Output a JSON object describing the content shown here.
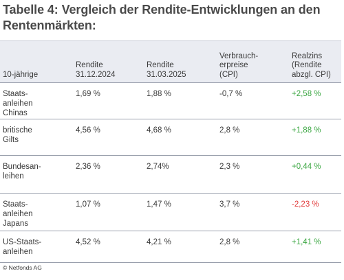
{
  "title": "Tabelle 4: Vergleich der Rendite-Entwicklungen an den Rentenmärkten:",
  "colors": {
    "header_bg": "#eaecf2",
    "positive": "#3aa641",
    "negative": "#e23a3a"
  },
  "headers": [
    "10-jährige",
    "Rendite\n31.12.2024",
    "Rendite\n31.03.2025",
    "Verbrauch-\nerpreise\n(CPI)",
    "Realzins\n(Rendite\nabzgl. CPI)"
  ],
  "rows": [
    {
      "name": "Staats-\nanleihen\nChinas",
      "r2024": "1,69 %",
      "r2025": "1,88 %",
      "cpi": "-0,7 %",
      "real": "+2,58 %",
      "real_sign": "pos"
    },
    {
      "name": "britische\nGilts",
      "r2024": "4,56 %",
      "r2025": "4,68 %",
      "cpi": "2,8 %",
      "real": "+1,88 %",
      "real_sign": "pos"
    },
    {
      "name": "Bundesan-\nleihen",
      "r2024": "2,36 %",
      "r2025": "2,74%",
      "cpi": "2,3 %",
      "real": "+0,44 %",
      "real_sign": "pos"
    },
    {
      "name": "Staats-\nanleihen\nJapans",
      "r2024": "1,07 %",
      "r2025": "1,47 %",
      "cpi": "3,7 %",
      "real": "-2,23 %",
      "real_sign": "neg"
    },
    {
      "name": "US-Staats-\nanleihen",
      "r2024": "4,52 %",
      "r2025": "4,21 %",
      "cpi": "2,8 %",
      "real": "+1,41 %",
      "real_sign": "pos"
    }
  ],
  "footer": "© Netfonds AG"
}
